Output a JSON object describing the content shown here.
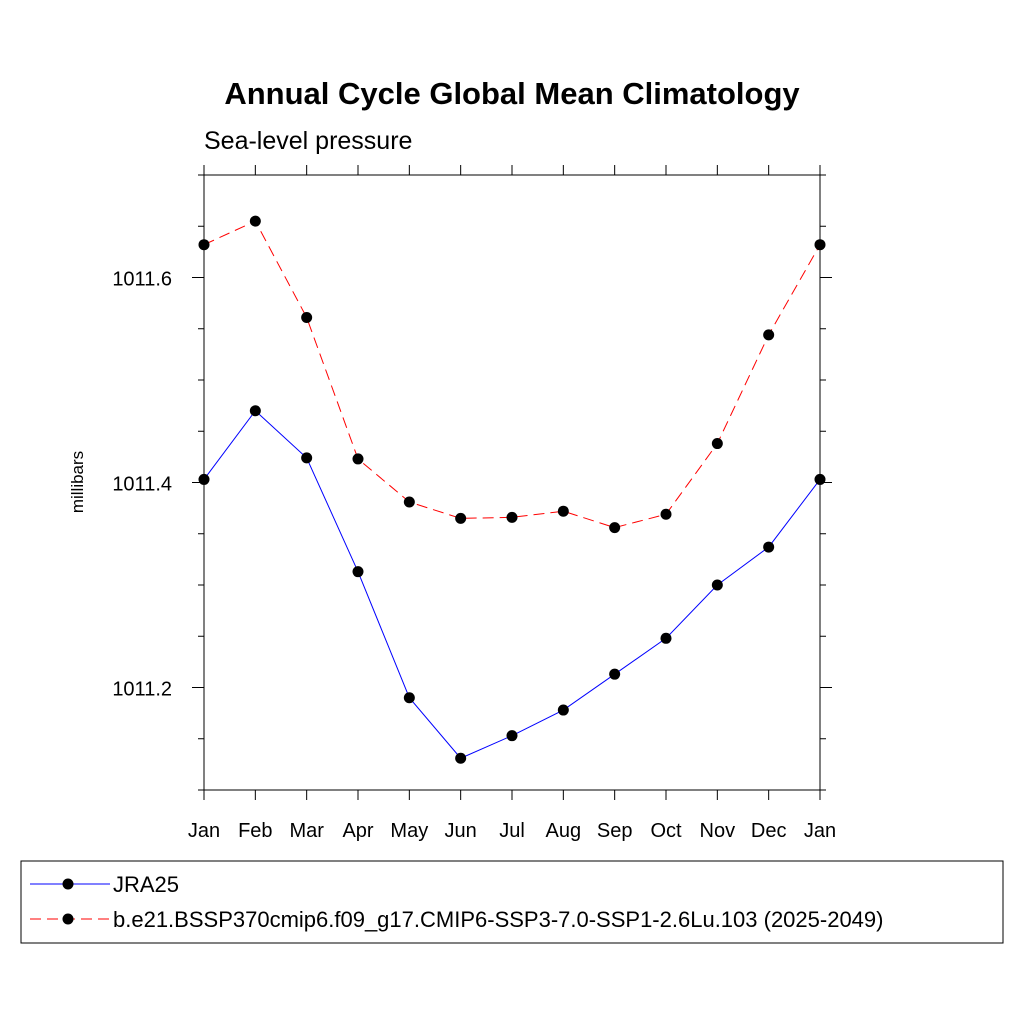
{
  "chart_data": {
    "type": "line",
    "title": "Annual Cycle Global Mean Climatology",
    "subtitle": "Sea-level pressure",
    "ylabel": "millibars",
    "xlabel": "",
    "categories": [
      "Jan",
      "Feb",
      "Mar",
      "Apr",
      "May",
      "Jun",
      "Jul",
      "Aug",
      "Sep",
      "Oct",
      "Nov",
      "Dec",
      "Jan"
    ],
    "ylim": [
      1011.1,
      1011.7
    ],
    "yticks": [
      1011.2,
      1011.4,
      1011.6
    ],
    "ytick_labels": [
      "1011.2",
      "1011.4",
      "1011.6"
    ],
    "yminor_step": 0.05,
    "grid": false,
    "legend_placement": "bottom",
    "series": [
      {
        "name": "JRA25",
        "color": "#0000ff",
        "dashed": false,
        "values": [
          1011.403,
          1011.47,
          1011.424,
          1011.313,
          1011.19,
          1011.131,
          1011.153,
          1011.178,
          1011.213,
          1011.248,
          1011.3,
          1011.337,
          1011.403
        ]
      },
      {
        "name": "b.e21.BSSP370cmip6.f09_g17.CMIP6-SSP3-7.0-SSP1-2.6Lu.103 (2025-2049)",
        "color": "#ff0000",
        "dashed": true,
        "values": [
          1011.632,
          1011.655,
          1011.561,
          1011.423,
          1011.381,
          1011.365,
          1011.366,
          1011.372,
          1011.356,
          1011.369,
          1011.438,
          1011.544,
          1011.632
        ]
      }
    ]
  }
}
